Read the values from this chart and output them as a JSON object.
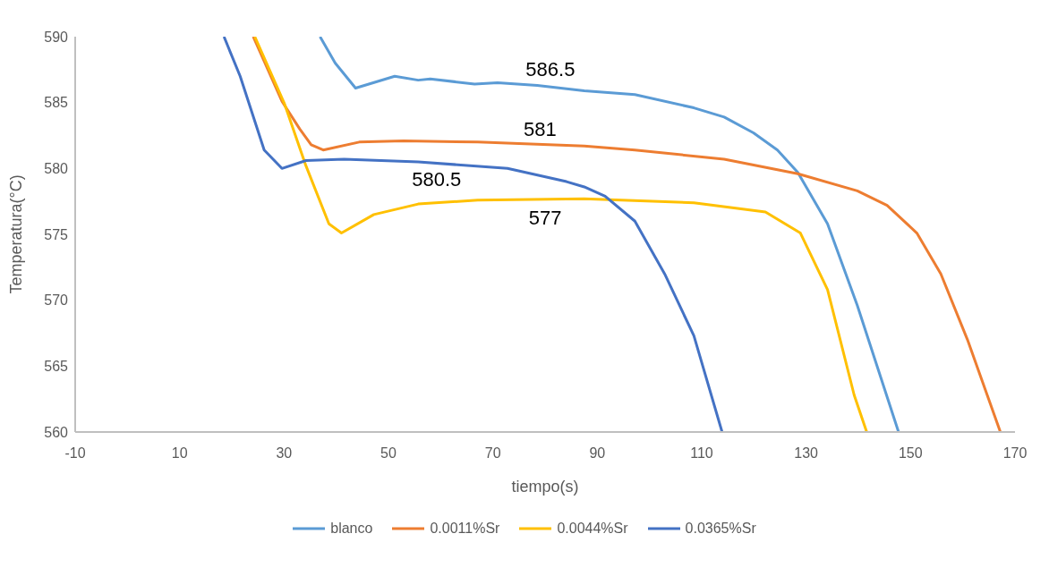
{
  "chart_data": {
    "type": "line",
    "xlabel": "tiempo(s)",
    "ylabel": "Temperatura(°C)",
    "xlim": [
      -10,
      170
    ],
    "xticks": [
      -10,
      10,
      30,
      50,
      70,
      90,
      110,
      130,
      150,
      170
    ],
    "ylim": [
      560,
      590
    ],
    "yticks": [
      560,
      565,
      570,
      575,
      580,
      585,
      590
    ],
    "grid": false,
    "legend": "bottom",
    "marker": "none",
    "line_style": "solid",
    "series": [
      {
        "name": "blanco",
        "color": "#5b9bd5",
        "x": [
          36.9,
          39.8,
          43.7,
          51.2,
          55.7,
          58.0,
          66.5,
          70.9,
          78.5,
          87.5,
          97.2,
          108.5,
          114.3,
          119.9,
          124.5,
          128.4,
          134.1,
          139.8,
          147.7
        ],
        "values": [
          590,
          588,
          586.1,
          587,
          586.7,
          586.8,
          586.4,
          586.5,
          586.3,
          585.9,
          585.6,
          584.6,
          583.9,
          582.7,
          581.4,
          579.7,
          575.8,
          569.6,
          560
        ]
      },
      {
        "name": "0.0011%Sr",
        "color": "#ed7d31",
        "x": [
          24.1,
          29.6,
          33.0,
          35.2,
          37.5,
          44.4,
          52.9,
          67.1,
          87.5,
          97.2,
          114.3,
          128.4,
          139.8,
          145.5,
          151.2,
          155.8,
          160.9,
          167.2
        ],
        "values": [
          590,
          585.1,
          583,
          581.8,
          581.4,
          582,
          582.1,
          582,
          581.7,
          581.4,
          580.7,
          579.6,
          578.3,
          577.2,
          575.1,
          572,
          567,
          560
        ]
      },
      {
        "name": "0.0044%Sr",
        "color": "#ffc000",
        "x": [
          24.4,
          30.1,
          34.2,
          38.6,
          41.0,
          47.2,
          55.7,
          67.1,
          87.5,
          108.5,
          122.2,
          128.9,
          134.1,
          139.2,
          141.6
        ],
        "values": [
          590,
          584.9,
          580.2,
          575.8,
          575.1,
          576.5,
          577.3,
          577.6,
          577.7,
          577.4,
          576.7,
          575.1,
          570.8,
          562.8,
          560
        ]
      },
      {
        "name": "0.0365%Sr",
        "color": "#4472c4",
        "x": [
          18.5,
          21.6,
          26.2,
          29.6,
          34.2,
          41.5,
          55.7,
          72.8,
          84.1,
          87.5,
          91.5,
          97.2,
          102.9,
          108.5,
          113.9
        ],
        "values": [
          590,
          587,
          581.4,
          580,
          580.6,
          580.7,
          580.5,
          580,
          579,
          578.6,
          577.9,
          576,
          572,
          567.3,
          560
        ]
      }
    ],
    "annotations": [
      "586.5",
      "581",
      "580.5",
      "577"
    ]
  }
}
